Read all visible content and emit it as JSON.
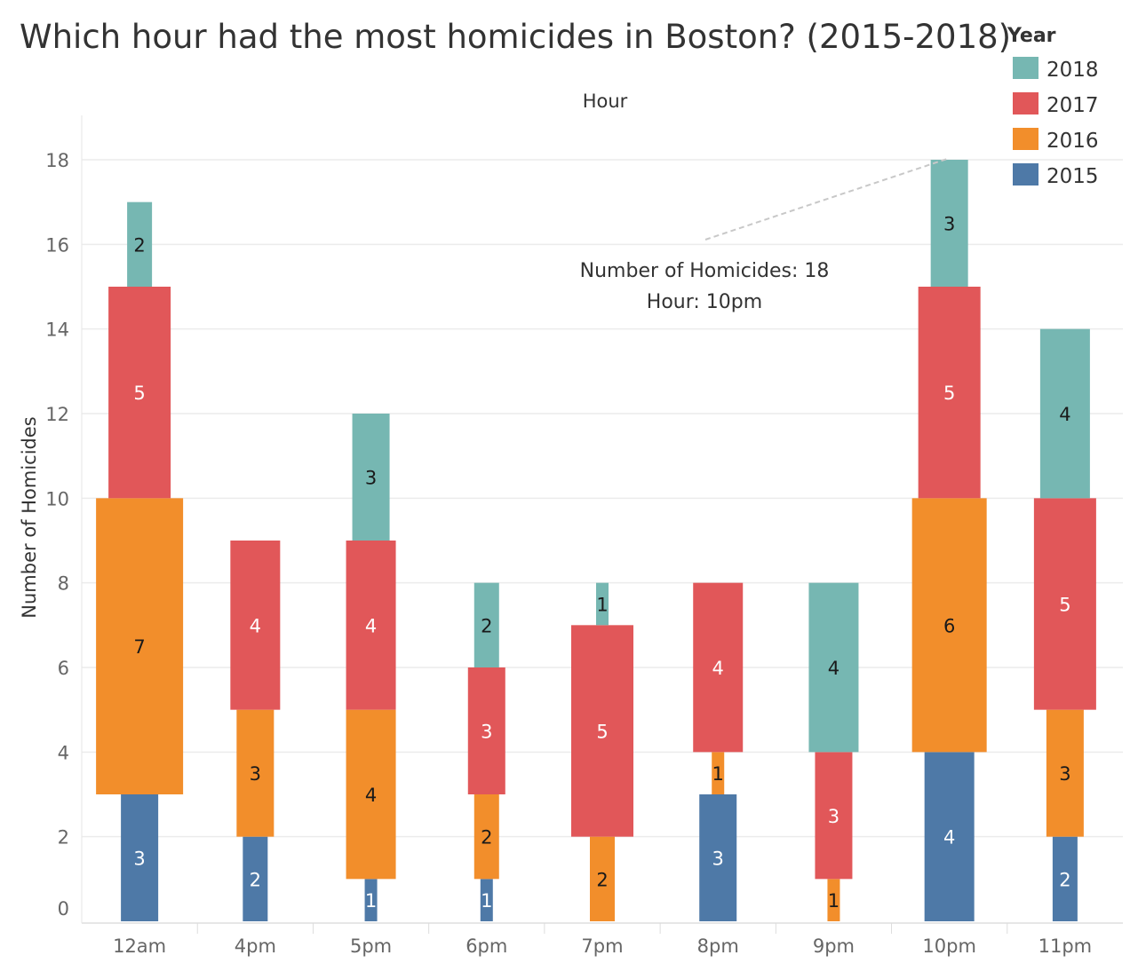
{
  "chart_data": {
    "type": "bar",
    "title": "Which hour had the most homicides in Boston? (2015-2018)",
    "xlabel": "Hour",
    "ylabel": "Number of Homicides",
    "ylim": [
      0,
      19
    ],
    "yticks": [
      0,
      2,
      4,
      6,
      8,
      10,
      12,
      14,
      16,
      18
    ],
    "grid": true,
    "stacked": true,
    "categories": [
      "12am",
      "4pm",
      "5pm",
      "6pm",
      "7pm",
      "8pm",
      "9pm",
      "10pm",
      "11pm"
    ],
    "series": [
      {
        "name": "2015",
        "color": "#4e79a7",
        "values": [
          3,
          2,
          1,
          1,
          0,
          3,
          0,
          4,
          2
        ]
      },
      {
        "name": "2016",
        "color": "#f28e2b",
        "values": [
          7,
          3,
          4,
          2,
          2,
          1,
          1,
          6,
          3
        ]
      },
      {
        "name": "2017",
        "color": "#e15759",
        "values": [
          5,
          4,
          4,
          3,
          5,
          4,
          3,
          5,
          5
        ]
      },
      {
        "name": "2018",
        "color": "#76b7b2",
        "values": [
          2,
          0,
          3,
          2,
          1,
          0,
          4,
          3,
          4
        ]
      }
    ],
    "legend": {
      "title": "Year",
      "position": "top-right",
      "entries": [
        "2018",
        "2017",
        "2016",
        "2015"
      ]
    },
    "annotation": {
      "line1": "Number of Homicides: 18",
      "line2": "Hour: 10pm",
      "target_category": "10pm",
      "target_value": 18
    }
  }
}
